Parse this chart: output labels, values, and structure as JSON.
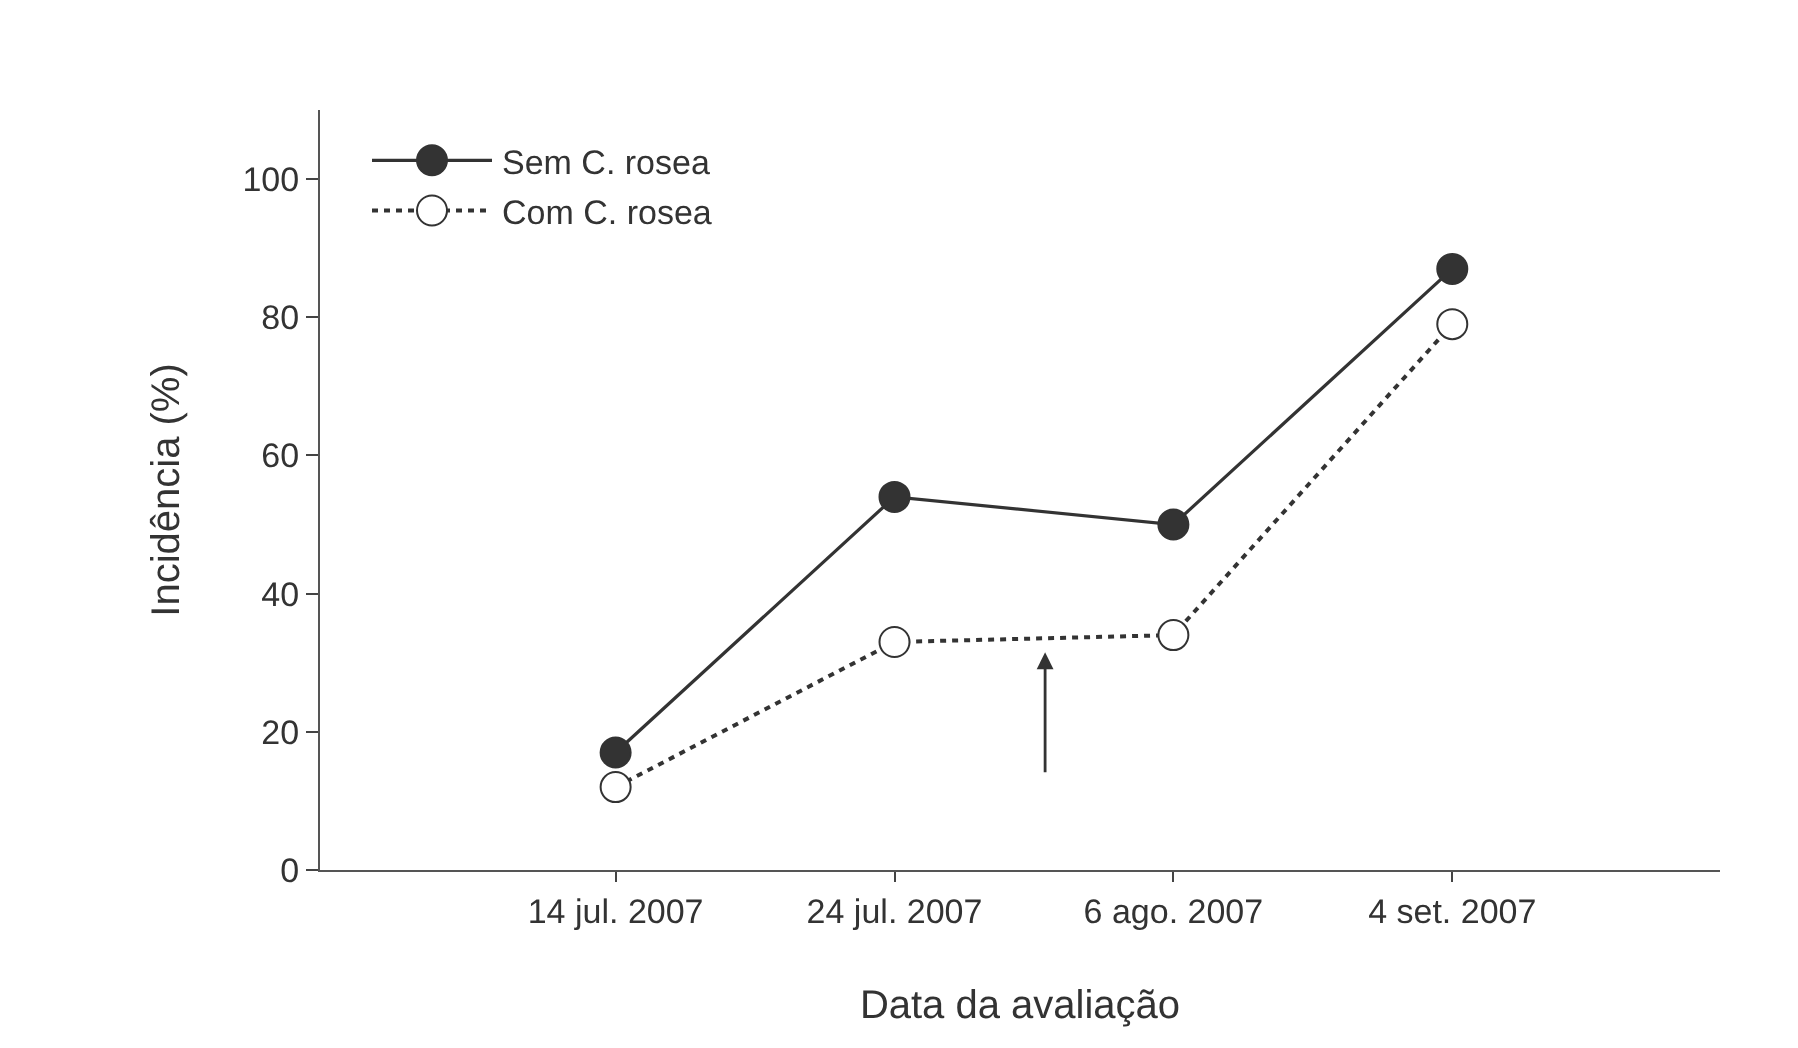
{
  "chart_data": {
    "type": "line",
    "xlabel": "Data da avaliação",
    "ylabel": "Incidência (%)",
    "categories": [
      "14 jul. 2007",
      "24 jul. 2007",
      "6 ago. 2007",
      "4 set. 2007"
    ],
    "series": [
      {
        "name": "Sem C. rosea",
        "color": "#333333",
        "values": [
          17,
          54,
          50,
          87
        ],
        "marker": "circle",
        "line_style": "solid"
      },
      {
        "name": "Com C. rosea",
        "color": "#333333",
        "values": [
          12,
          33,
          34,
          79
        ],
        "marker": "circle",
        "line_style": "dotted"
      }
    ],
    "ylim": [
      0,
      110
    ],
    "yticks": [
      0,
      20,
      40,
      60,
      80,
      100
    ],
    "grid": false,
    "legend": "top left"
  }
}
